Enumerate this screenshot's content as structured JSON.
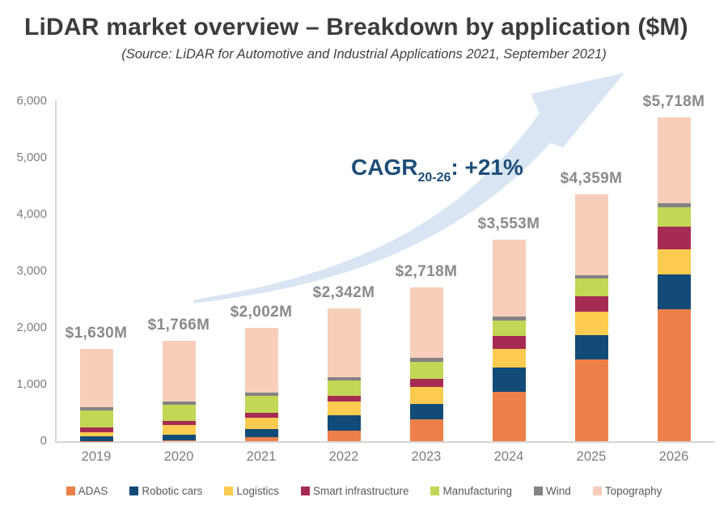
{
  "header": {
    "title": "LiDAR market overview – Breakdown by application ($M)",
    "subtitle": "(Source: LiDAR for Automotive and Industrial Applications 2021, September 2021)"
  },
  "annotation": {
    "prefix": "CAGR",
    "subscript": "20-26",
    "suffix": ": +21%",
    "color": "#1d4e79",
    "arrow_color": "#d9e5f2"
  },
  "chart_data": {
    "type": "bar",
    "stacked": true,
    "categories": [
      "2019",
      "2020",
      "2021",
      "2022",
      "2023",
      "2024",
      "2025",
      "2026"
    ],
    "series": [
      {
        "name": "ADAS",
        "color": "#ed8049",
        "values": [
          5,
          10,
          75,
          190,
          385,
          870,
          1435,
          2335
        ]
      },
      {
        "name": "Robotic cars",
        "color": "#124b77",
        "values": [
          85,
          110,
          145,
          260,
          275,
          430,
          430,
          605
        ]
      },
      {
        "name": "Logistics",
        "color": "#fdcb4f",
        "values": [
          70,
          170,
          195,
          245,
          295,
          335,
          420,
          440
        ]
      },
      {
        "name": "Smart infrastructure",
        "color": "#a62b53",
        "values": [
          85,
          65,
          85,
          110,
          150,
          225,
          270,
          405
        ]
      },
      {
        "name": "Manufacturing",
        "color": "#c3d655",
        "values": [
          295,
          290,
          305,
          260,
          300,
          275,
          310,
          345
        ]
      },
      {
        "name": "Wind",
        "color": "#838383",
        "values": [
          60,
          60,
          55,
          60,
          60,
          70,
          70,
          75
        ]
      },
      {
        "name": "Topography",
        "color": "#f8ceba",
        "values": [
          1030,
          1061,
          1142,
          1217,
          1253,
          1348,
          1424,
          1513
        ]
      }
    ],
    "totals": [
      1630,
      1766,
      2002,
      2342,
      2718,
      3553,
      4359,
      5718
    ],
    "total_labels": [
      "$1,630M",
      "$1,766M",
      "$2,002M",
      "$2,342M",
      "$2,718M",
      "$3,553M",
      "$4,359M",
      "$5,718M"
    ],
    "title": "LiDAR market overview – Breakdown by application ($M)",
    "xlabel": "",
    "ylabel": "",
    "ylim": [
      0,
      6000
    ],
    "y_ticks": [
      0,
      1000,
      2000,
      3000,
      4000,
      5000,
      6000
    ],
    "y_tick_labels": [
      "0",
      "1,000",
      "2,000",
      "3,000",
      "4,000",
      "5,000",
      "6,000"
    ],
    "grid": false,
    "legend_position": "bottom"
  }
}
